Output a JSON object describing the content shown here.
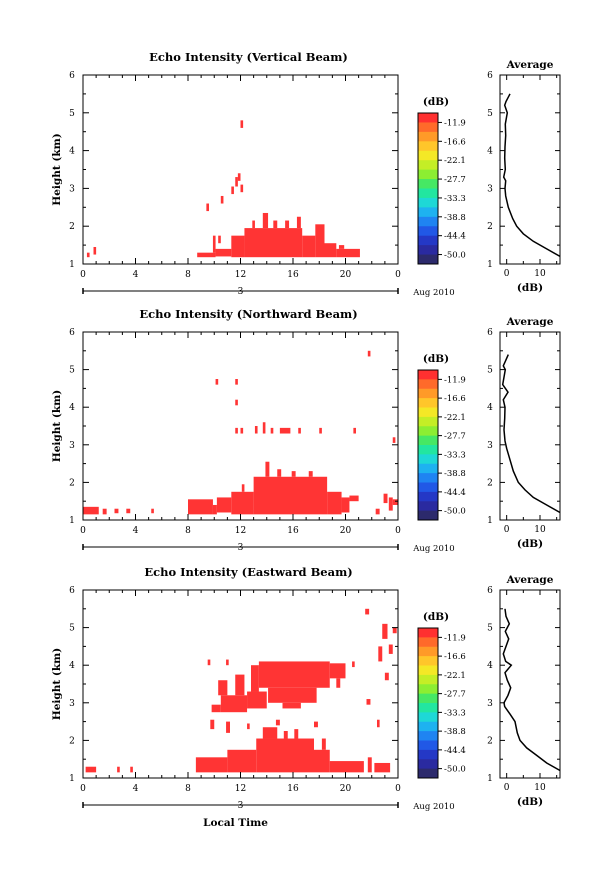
{
  "x_label": "Local Time",
  "date_label": "3",
  "month_label": "Aug 2010",
  "colorbar": {
    "unit": "(dB)",
    "ticks": [
      "-11.9",
      "-16.6",
      "-22.1",
      "-27.7",
      "-33.3",
      "-38.8",
      "-44.4",
      "-50.0"
    ],
    "colors": [
      "#ff3030",
      "#ff6a2a",
      "#ff9a28",
      "#ffc62a",
      "#f4e826",
      "#c4ee26",
      "#8cee32",
      "#46e864",
      "#22e6a0",
      "#1ed8d6",
      "#1eb2f0",
      "#1f84f2",
      "#2158e6",
      "#2438c6",
      "#2a2aa0",
      "#2c2a6c"
    ]
  },
  "chart_data": [
    {
      "type": "heatmap",
      "title": "Echo Intensity (Vertical Beam)",
      "ylabel": "Height (km)",
      "xlim": [
        0,
        24
      ],
      "ylim": [
        1,
        6
      ],
      "x_ticks": [
        "0",
        "4",
        "8",
        "12",
        "16",
        "20",
        "0"
      ],
      "y_ticks": [
        "1",
        "2",
        "3",
        "4",
        "5",
        "6"
      ],
      "cells": [
        {
          "t0": 0.3,
          "t1": 0.5,
          "h0": 1.18,
          "h1": 1.3
        },
        {
          "t0": 0.8,
          "t1": 1.0,
          "h0": 1.25,
          "h1": 1.45
        },
        {
          "t0": 8.7,
          "t1": 10.1,
          "h0": 1.18,
          "h1": 1.3
        },
        {
          "t0": 9.9,
          "t1": 10.1,
          "h0": 1.3,
          "h1": 1.75
        },
        {
          "t0": 10.1,
          "t1": 11.3,
          "h0": 1.2,
          "h1": 1.4
        },
        {
          "t0": 10.3,
          "t1": 10.5,
          "h0": 1.55,
          "h1": 1.75
        },
        {
          "t0": 11.3,
          "t1": 12.3,
          "h0": 1.18,
          "h1": 1.75
        },
        {
          "t0": 12.3,
          "t1": 16.7,
          "h0": 1.18,
          "h1": 1.95
        },
        {
          "t0": 13.7,
          "t1": 14.1,
          "h0": 1.95,
          "h1": 2.35
        },
        {
          "t0": 12.9,
          "t1": 13.1,
          "h0": 1.95,
          "h1": 2.15
        },
        {
          "t0": 14.5,
          "t1": 14.8,
          "h0": 1.95,
          "h1": 2.15
        },
        {
          "t0": 15.4,
          "t1": 15.7,
          "h0": 1.95,
          "h1": 2.15
        },
        {
          "t0": 16.3,
          "t1": 16.6,
          "h0": 1.95,
          "h1": 2.25
        },
        {
          "t0": 16.7,
          "t1": 17.7,
          "h0": 1.18,
          "h1": 1.75
        },
        {
          "t0": 17.7,
          "t1": 18.4,
          "h0": 1.18,
          "h1": 2.05
        },
        {
          "t0": 18.4,
          "t1": 19.3,
          "h0": 1.18,
          "h1": 1.55
        },
        {
          "t0": 19.3,
          "t1": 21.1,
          "h0": 1.18,
          "h1": 1.4
        },
        {
          "t0": 19.5,
          "t1": 19.9,
          "h0": 1.4,
          "h1": 1.5
        },
        {
          "t0": 9.4,
          "t1": 9.6,
          "h0": 2.4,
          "h1": 2.6
        },
        {
          "t0": 10.5,
          "t1": 10.7,
          "h0": 2.6,
          "h1": 2.8
        },
        {
          "t0": 11.3,
          "t1": 11.5,
          "h0": 2.85,
          "h1": 3.05
        },
        {
          "t0": 11.6,
          "t1": 11.8,
          "h0": 3.05,
          "h1": 3.3
        },
        {
          "t0": 11.8,
          "t1": 12.0,
          "h0": 3.2,
          "h1": 3.4
        },
        {
          "t0": 12.0,
          "t1": 12.2,
          "h0": 2.9,
          "h1": 3.1
        },
        {
          "t0": 12.0,
          "t1": 12.2,
          "h0": 4.6,
          "h1": 4.8
        }
      ],
      "profile": {
        "xlim": [
          -2,
          16
        ],
        "x_ticks": [
          "0",
          "10"
        ],
        "xlabel": "(dB)",
        "title": "Average",
        "values": [
          [
            1.2,
            16
          ],
          [
            1.4,
            12
          ],
          [
            1.6,
            8
          ],
          [
            1.8,
            5
          ],
          [
            2.0,
            3
          ],
          [
            2.2,
            1.8
          ],
          [
            2.5,
            0.5
          ],
          [
            2.8,
            -0.3
          ],
          [
            3.0,
            -0.5
          ],
          [
            3.2,
            -0.3
          ],
          [
            3.3,
            -0.9
          ],
          [
            3.5,
            -0.4
          ],
          [
            3.8,
            -0.6
          ],
          [
            4.1,
            -0.5
          ],
          [
            4.4,
            -0.3
          ],
          [
            4.7,
            -0.4
          ],
          [
            5.0,
            0.2
          ],
          [
            5.2,
            -0.6
          ],
          [
            5.3,
            -0.2
          ],
          [
            5.5,
            1.0
          ]
        ]
      }
    },
    {
      "type": "heatmap",
      "title": "Echo Intensity (Northward Beam)",
      "ylabel": "Height (km)",
      "xlim": [
        0,
        24
      ],
      "ylim": [
        1,
        6
      ],
      "x_ticks": [
        "0",
        "4",
        "8",
        "12",
        "16",
        "20",
        "0"
      ],
      "y_ticks": [
        "1",
        "2",
        "3",
        "4",
        "5",
        "6"
      ],
      "cells": [
        {
          "t0": 0.0,
          "t1": 1.2,
          "h0": 1.15,
          "h1": 1.35
        },
        {
          "t0": 1.5,
          "t1": 1.8,
          "h0": 1.15,
          "h1": 1.3
        },
        {
          "t0": 2.4,
          "t1": 2.7,
          "h0": 1.18,
          "h1": 1.3
        },
        {
          "t0": 3.3,
          "t1": 3.6,
          "h0": 1.18,
          "h1": 1.3
        },
        {
          "t0": 5.2,
          "t1": 5.4,
          "h0": 1.18,
          "h1": 1.3
        },
        {
          "t0": 8.0,
          "t1": 9.9,
          "h0": 1.15,
          "h1": 1.55
        },
        {
          "t0": 9.9,
          "t1": 10.2,
          "h0": 1.15,
          "h1": 1.4
        },
        {
          "t0": 10.2,
          "t1": 11.3,
          "h0": 1.2,
          "h1": 1.6
        },
        {
          "t0": 11.3,
          "t1": 13.0,
          "h0": 1.15,
          "h1": 1.75
        },
        {
          "t0": 12.1,
          "t1": 12.3,
          "h0": 1.75,
          "h1": 1.95
        },
        {
          "t0": 13.0,
          "t1": 18.6,
          "h0": 1.15,
          "h1": 2.15
        },
        {
          "t0": 13.9,
          "t1": 14.2,
          "h0": 2.15,
          "h1": 2.55
        },
        {
          "t0": 14.8,
          "t1": 15.1,
          "h0": 2.15,
          "h1": 2.35
        },
        {
          "t0": 15.9,
          "t1": 16.2,
          "h0": 2.15,
          "h1": 2.3
        },
        {
          "t0": 17.2,
          "t1": 17.5,
          "h0": 2.15,
          "h1": 2.3
        },
        {
          "t0": 18.6,
          "t1": 19.7,
          "h0": 1.15,
          "h1": 1.75
        },
        {
          "t0": 19.7,
          "t1": 20.3,
          "h0": 1.2,
          "h1": 1.6
        },
        {
          "t0": 20.3,
          "t1": 21.0,
          "h0": 1.5,
          "h1": 1.65
        },
        {
          "t0": 22.3,
          "t1": 22.6,
          "h0": 1.15,
          "h1": 1.3
        },
        {
          "t0": 22.9,
          "t1": 23.2,
          "h0": 1.45,
          "h1": 1.7
        },
        {
          "t0": 23.3,
          "t1": 23.6,
          "h0": 1.25,
          "h1": 1.6
        },
        {
          "t0": 23.6,
          "t1": 24.0,
          "h0": 1.4,
          "h1": 1.55
        },
        {
          "t0": 10.1,
          "t1": 10.3,
          "h0": 4.6,
          "h1": 4.75
        },
        {
          "t0": 11.6,
          "t1": 11.8,
          "h0": 4.6,
          "h1": 4.75
        },
        {
          "t0": 11.6,
          "t1": 11.8,
          "h0": 4.05,
          "h1": 4.2
        },
        {
          "t0": 11.6,
          "t1": 11.8,
          "h0": 3.3,
          "h1": 3.45
        },
        {
          "t0": 12.0,
          "t1": 12.2,
          "h0": 3.3,
          "h1": 3.45
        },
        {
          "t0": 13.1,
          "t1": 13.3,
          "h0": 3.3,
          "h1": 3.5
        },
        {
          "t0": 13.7,
          "t1": 13.9,
          "h0": 3.3,
          "h1": 3.6
        },
        {
          "t0": 14.3,
          "t1": 14.5,
          "h0": 3.3,
          "h1": 3.45
        },
        {
          "t0": 15.0,
          "t1": 15.8,
          "h0": 3.3,
          "h1": 3.45
        },
        {
          "t0": 16.4,
          "t1": 16.6,
          "h0": 3.3,
          "h1": 3.45
        },
        {
          "t0": 18.0,
          "t1": 18.2,
          "h0": 3.3,
          "h1": 3.45
        },
        {
          "t0": 20.6,
          "t1": 20.8,
          "h0": 3.3,
          "h1": 3.45
        },
        {
          "t0": 23.6,
          "t1": 23.8,
          "h0": 3.05,
          "h1": 3.2
        },
        {
          "t0": 21.7,
          "t1": 21.9,
          "h0": 5.35,
          "h1": 5.5
        }
      ],
      "profile": {
        "xlim": [
          -2,
          16
        ],
        "x_ticks": [
          "0",
          "10"
        ],
        "xlabel": "(dB)",
        "title": "Average",
        "values": [
          [
            1.2,
            16
          ],
          [
            1.4,
            12
          ],
          [
            1.6,
            8
          ],
          [
            1.8,
            5.5
          ],
          [
            2.0,
            3.5
          ],
          [
            2.3,
            2
          ],
          [
            2.6,
            1
          ],
          [
            2.9,
            0
          ],
          [
            3.1,
            -0.5
          ],
          [
            3.4,
            -0.8
          ],
          [
            3.7,
            -0.6
          ],
          [
            4.0,
            -0.5
          ],
          [
            4.2,
            -1
          ],
          [
            4.4,
            0.4
          ],
          [
            4.6,
            -1.2
          ],
          [
            4.8,
            -0.8
          ],
          [
            5.0,
            -0.4
          ],
          [
            5.1,
            -1.0
          ],
          [
            5.2,
            -0.5
          ],
          [
            5.4,
            0.5
          ]
        ]
      }
    },
    {
      "type": "heatmap",
      "title": "Echo Intensity (Eastward Beam)",
      "ylabel": "Height (km)",
      "xlim": [
        0,
        24
      ],
      "ylim": [
        1,
        6
      ],
      "x_ticks": [
        "0",
        "4",
        "8",
        "12",
        "16",
        "20",
        "0"
      ],
      "y_ticks": [
        "1",
        "2",
        "3",
        "4",
        "5",
        "6"
      ],
      "cells": [
        {
          "t0": 0.2,
          "t1": 1.0,
          "h0": 1.15,
          "h1": 1.3
        },
        {
          "t0": 2.6,
          "t1": 2.8,
          "h0": 1.15,
          "h1": 1.3
        },
        {
          "t0": 3.6,
          "t1": 3.8,
          "h0": 1.15,
          "h1": 1.3
        },
        {
          "t0": 8.6,
          "t1": 11.0,
          "h0": 1.15,
          "h1": 1.55
        },
        {
          "t0": 11.0,
          "t1": 13.2,
          "h0": 1.15,
          "h1": 1.75
        },
        {
          "t0": 13.2,
          "t1": 17.6,
          "h0": 1.15,
          "h1": 2.05
        },
        {
          "t0": 13.7,
          "t1": 14.8,
          "h0": 2.05,
          "h1": 2.35
        },
        {
          "t0": 15.3,
          "t1": 15.6,
          "h0": 2.05,
          "h1": 2.25
        },
        {
          "t0": 16.1,
          "t1": 16.4,
          "h0": 2.05,
          "h1": 2.3
        },
        {
          "t0": 17.6,
          "t1": 18.8,
          "h0": 1.15,
          "h1": 1.75
        },
        {
          "t0": 18.2,
          "t1": 18.5,
          "h0": 1.75,
          "h1": 2.05
        },
        {
          "t0": 18.8,
          "t1": 21.4,
          "h0": 1.15,
          "h1": 1.45
        },
        {
          "t0": 21.7,
          "t1": 22.0,
          "h0": 1.15,
          "h1": 1.55
        },
        {
          "t0": 22.2,
          "t1": 23.4,
          "h0": 1.15,
          "h1": 1.4
        },
        {
          "t0": 9.7,
          "t1": 10.0,
          "h0": 2.3,
          "h1": 2.55
        },
        {
          "t0": 10.9,
          "t1": 11.2,
          "h0": 2.2,
          "h1": 2.5
        },
        {
          "t0": 12.5,
          "t1": 12.7,
          "h0": 2.3,
          "h1": 2.45
        },
        {
          "t0": 14.7,
          "t1": 15.0,
          "h0": 2.4,
          "h1": 2.55
        },
        {
          "t0": 17.6,
          "t1": 17.9,
          "h0": 2.35,
          "h1": 2.5
        },
        {
          "t0": 22.4,
          "t1": 22.6,
          "h0": 2.35,
          "h1": 2.55
        },
        {
          "t0": 9.8,
          "t1": 10.5,
          "h0": 2.75,
          "h1": 2.95
        },
        {
          "t0": 10.5,
          "t1": 12.5,
          "h0": 2.75,
          "h1": 3.2
        },
        {
          "t0": 12.5,
          "t1": 14.0,
          "h0": 2.85,
          "h1": 3.3
        },
        {
          "t0": 10.3,
          "t1": 11.0,
          "h0": 3.2,
          "h1": 3.6
        },
        {
          "t0": 11.6,
          "t1": 12.3,
          "h0": 3.2,
          "h1": 3.75
        },
        {
          "t0": 12.8,
          "t1": 13.4,
          "h0": 3.3,
          "h1": 4.0
        },
        {
          "t0": 13.4,
          "t1": 18.8,
          "h0": 3.4,
          "h1": 4.1
        },
        {
          "t0": 14.1,
          "t1": 17.8,
          "h0": 3.0,
          "h1": 3.4
        },
        {
          "t0": 15.2,
          "t1": 16.6,
          "h0": 2.85,
          "h1": 3.0
        },
        {
          "t0": 18.8,
          "t1": 20.0,
          "h0": 3.65,
          "h1": 4.05
        },
        {
          "t0": 19.3,
          "t1": 19.6,
          "h0": 3.4,
          "h1": 3.65
        },
        {
          "t0": 9.5,
          "t1": 9.7,
          "h0": 4.0,
          "h1": 4.15
        },
        {
          "t0": 10.9,
          "t1": 11.1,
          "h0": 4.0,
          "h1": 4.15
        },
        {
          "t0": 20.5,
          "t1": 20.7,
          "h0": 3.95,
          "h1": 4.1
        },
        {
          "t0": 21.5,
          "t1": 21.8,
          "h0": 5.35,
          "h1": 5.5
        },
        {
          "t0": 22.5,
          "t1": 22.8,
          "h0": 4.1,
          "h1": 4.5
        },
        {
          "t0": 22.8,
          "t1": 23.2,
          "h0": 4.7,
          "h1": 5.1
        },
        {
          "t0": 23.0,
          "t1": 23.3,
          "h0": 3.6,
          "h1": 3.8
        },
        {
          "t0": 23.3,
          "t1": 23.6,
          "h0": 4.3,
          "h1": 4.55
        },
        {
          "t0": 23.6,
          "t1": 23.9,
          "h0": 4.85,
          "h1": 5.0
        },
        {
          "t0": 21.6,
          "t1": 21.9,
          "h0": 2.95,
          "h1": 3.1
        }
      ],
      "profile": {
        "xlim": [
          -2,
          16
        ],
        "x_ticks": [
          "0",
          "10"
        ],
        "xlabel": "(dB)",
        "title": "Average",
        "values": [
          [
            1.2,
            16
          ],
          [
            1.4,
            12
          ],
          [
            1.6,
            9
          ],
          [
            1.8,
            6
          ],
          [
            2.0,
            4
          ],
          [
            2.2,
            3.2
          ],
          [
            2.5,
            2.5
          ],
          [
            2.7,
            1
          ],
          [
            2.9,
            -0.6
          ],
          [
            3.0,
            -0.8
          ],
          [
            3.2,
            0.4
          ],
          [
            3.4,
            1.2
          ],
          [
            3.6,
            0.2
          ],
          [
            3.8,
            -0.5
          ],
          [
            4.0,
            1.4
          ],
          [
            4.1,
            -0.3
          ],
          [
            4.3,
            -1
          ],
          [
            4.5,
            -0.2
          ],
          [
            4.7,
            0.6
          ],
          [
            4.9,
            -0.4
          ],
          [
            5.1,
            0.8
          ],
          [
            5.3,
            -0.2
          ],
          [
            5.5,
            -0.5
          ]
        ]
      }
    }
  ]
}
